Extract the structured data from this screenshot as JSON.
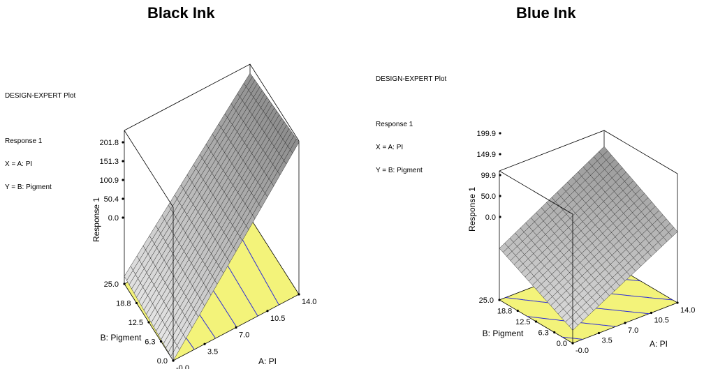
{
  "charts": [
    {
      "id": "black",
      "title": "Black Ink",
      "plot_name": "DESIGN-EXPERT Plot",
      "response_label": "Response 1",
      "x_assign": "X = A: PI",
      "y_assign": "Y = B: Pigment",
      "z_axis_label": "Response 1",
      "a_axis_label": "A: PI",
      "b_axis_label": "B: Pigment",
      "z_ticks": [
        "0.0",
        "50.4",
        "100.9",
        "151.3",
        "201.8"
      ],
      "a_ticks": [
        "-0.0",
        "3.5",
        "7.0",
        "10.5",
        "14.0"
      ],
      "b_ticks": [
        "0.0",
        "6.3",
        "12.5",
        "18.8",
        "25.0"
      ]
    },
    {
      "id": "blue",
      "title": "Blue Ink",
      "plot_name": "DESIGN-EXPERT Plot",
      "response_label": "Response 1",
      "x_assign": "X = A: PI",
      "y_assign": "Y = B: Pigment",
      "z_axis_label": "Response 1",
      "a_axis_label": "A: PI",
      "b_axis_label": "B: Pigment",
      "z_ticks": [
        "0.0",
        "50.0",
        "99.9",
        "149.9",
        "199.9"
      ],
      "a_ticks": [
        "-0.0",
        "3.5",
        "7.0",
        "10.5",
        "14.0"
      ],
      "b_ticks": [
        "0.0",
        "6.3",
        "12.5",
        "18.8",
        "25.0"
      ]
    }
  ],
  "chart_data": [
    {
      "type": "surface",
      "title": "Black Ink",
      "xlabel": "A: PI",
      "ylabel": "B: Pigment",
      "zlabel": "Response 1",
      "xlim": [
        0,
        14
      ],
      "ylim": [
        0,
        25
      ],
      "zlim": [
        0,
        201.8
      ],
      "corner_values": {
        "A0_B0": 0,
        "A14_B0": 200,
        "A0_B25": 10,
        "A14_B25": 190
      },
      "contour_count": 5,
      "colors": {
        "floor": "#f3f37a",
        "contour": "#2b2bd9",
        "mesh": "#333333"
      }
    },
    {
      "type": "surface",
      "title": "Blue Ink",
      "xlabel": "A: PI",
      "ylabel": "B: Pigment",
      "zlabel": "Response 1",
      "xlim": [
        0,
        14
      ],
      "ylim": [
        0,
        25
      ],
      "zlim": [
        0,
        199.9
      ],
      "corner_values": {
        "A0_B0": 20,
        "A14_B0": 110,
        "A0_B25": 80,
        "A14_B25": 175
      },
      "contour_count": 6,
      "colors": {
        "floor": "#f3f37a",
        "contour": "#2b2bd9",
        "mesh": "#333333"
      }
    }
  ]
}
